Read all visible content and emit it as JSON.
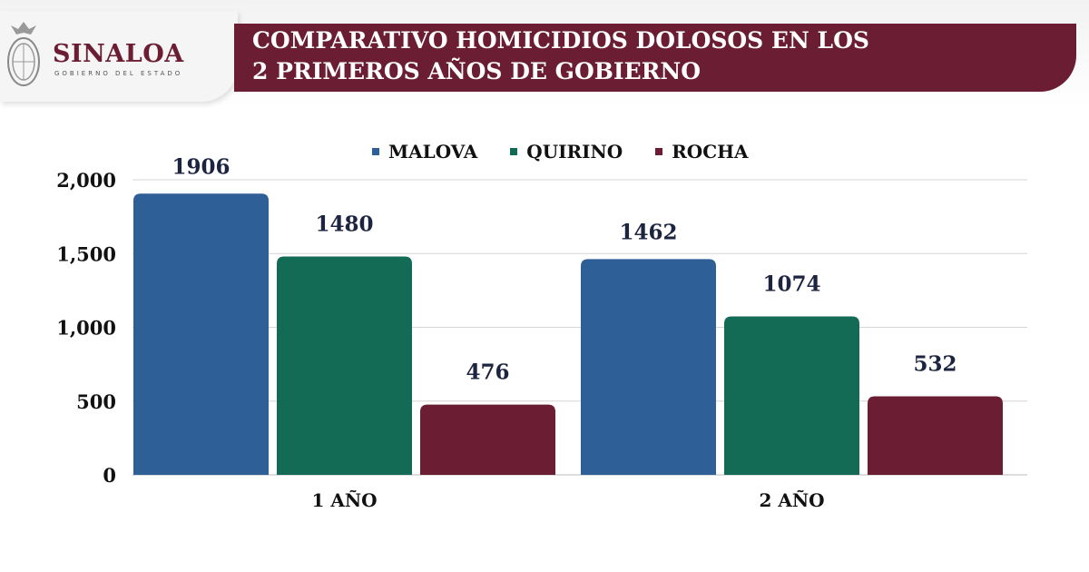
{
  "header": {
    "brand": "SINALOA",
    "brand_sub": "GOBIERNO DEL ESTADO",
    "title_line1": "COMPARATIVO HOMICIDIOS DOLOSOS EN LOS",
    "title_line2": "2 PRIMEROS AÑOS DE GOBIERNO"
  },
  "chart_data": {
    "type": "bar",
    "title": "COMPARATIVO HOMICIDIOS DOLOSOS EN LOS 2 PRIMEROS AÑOS DE GOBIERNO",
    "categories": [
      "1 AÑO",
      "2 AÑO"
    ],
    "series": [
      {
        "name": "MALOVA",
        "values": [
          1906,
          1462
        ],
        "color": "#2e5f96"
      },
      {
        "name": "QUIRINO",
        "values": [
          1480,
          1074
        ],
        "color": "#146b55"
      },
      {
        "name": "ROCHA",
        "values": [
          476,
          532
        ],
        "color": "#6b1d33"
      }
    ],
    "yticks": [
      "0",
      "500",
      "1,000",
      "1,500",
      "2,000"
    ],
    "ytick_values": [
      0,
      500,
      1000,
      1500,
      2000
    ],
    "ylim": [
      0,
      2000
    ],
    "grid": true,
    "legend": "top-center"
  }
}
